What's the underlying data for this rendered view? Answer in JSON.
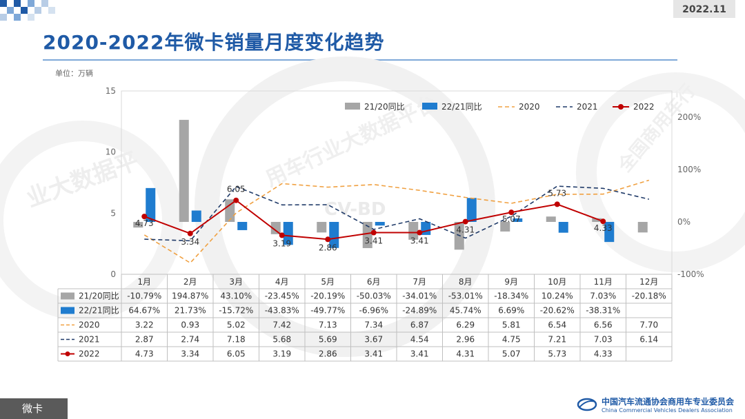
{
  "header": {
    "date": "2022.11",
    "title": "2020-2022年微卡销量月度变化趋势",
    "unit": "单位：万辆"
  },
  "footer": {
    "tag": "微卡",
    "org_cn": "中国汽车流通协会商用车专业委员会",
    "org_en": "China Commercial Vehicles Dealers Association"
  },
  "watermark": {
    "text1": "业大数据平",
    "text2": "用车行业大数据平台",
    "text3": "CV-BD",
    "text4": "全国商用车行"
  },
  "colors": {
    "bar2120": "#a6a6a6",
    "bar2221": "#1f7ccf",
    "line2020": "#f0a040",
    "line2021": "#1f3a68",
    "line2022": "#c00000",
    "title": "#1f5aa6"
  },
  "chart_data": {
    "type": "bar+line",
    "categories": [
      "1月",
      "2月",
      "3月",
      "4月",
      "5月",
      "6月",
      "7月",
      "8月",
      "9月",
      "10月",
      "11月",
      "12月"
    ],
    "left_axis": {
      "min": 0,
      "max": 15,
      "ticks": [
        "0",
        "5",
        "10",
        "15"
      ]
    },
    "right_axis": {
      "min": -100,
      "max": 250,
      "ticks": [
        "-100%",
        "0%",
        "100%",
        "200%"
      ],
      "tick_values": [
        -100,
        0,
        100,
        200
      ]
    },
    "legend_position": "top-right",
    "bar_series": [
      {
        "name": "21/20同比",
        "color": "#a6a6a6",
        "values": [
          -10.79,
          194.87,
          43.1,
          -23.45,
          -20.19,
          -50.03,
          -34.01,
          -53.01,
          -18.34,
          10.24,
          7.03,
          -20.18
        ],
        "labels": [
          "-10.79%",
          "194.87%",
          "43.10%",
          "-23.45%",
          "-20.19%",
          "-50.03%",
          "-34.01%",
          "-53.01%",
          "-18.34%",
          "10.24%",
          "7.03%",
          "-20.18%"
        ]
      },
      {
        "name": "22/21同比",
        "color": "#1f7ccf",
        "values": [
          64.67,
          21.73,
          -15.72,
          -43.83,
          -49.77,
          -6.96,
          -24.89,
          45.74,
          6.69,
          -20.62,
          -38.31,
          null
        ],
        "labels": [
          "64.67%",
          "21.73%",
          "-15.72%",
          "-43.83%",
          "-49.77%",
          "-6.96%",
          "-24.89%",
          "45.74%",
          "6.69%",
          "-20.62%",
          "-38.31%",
          ""
        ]
      }
    ],
    "line_series": [
      {
        "name": "2020",
        "color": "#f0a040",
        "style": "dashed",
        "values": [
          3.22,
          0.93,
          5.02,
          7.42,
          7.13,
          7.34,
          6.87,
          6.29,
          5.81,
          6.54,
          6.56,
          7.7
        ],
        "labels": [
          "3.22",
          "0.93",
          "5.02",
          "7.42",
          "7.13",
          "7.34",
          "6.87",
          "6.29",
          "5.81",
          "6.54",
          "6.56",
          "7.70"
        ]
      },
      {
        "name": "2021",
        "color": "#1f3a68",
        "style": "dashed",
        "values": [
          2.87,
          2.74,
          7.18,
          5.68,
          5.69,
          3.67,
          4.54,
          2.96,
          4.75,
          7.21,
          7.03,
          6.14
        ],
        "labels": [
          "2.87",
          "2.74",
          "7.18",
          "5.68",
          "5.69",
          "3.67",
          "4.54",
          "2.96",
          "4.75",
          "7.21",
          "7.03",
          "6.14"
        ]
      },
      {
        "name": "2022",
        "color": "#c00000",
        "style": "solid-marker",
        "values": [
          4.73,
          3.34,
          6.05,
          3.19,
          2.86,
          3.41,
          3.41,
          4.31,
          5.07,
          5.73,
          4.33,
          null
        ],
        "labels": [
          "4.73",
          "3.34",
          "6.05",
          "3.19",
          "2.86",
          "3.41",
          "3.41",
          "4.31",
          "5.07",
          "5.73",
          "4.33",
          ""
        ]
      }
    ],
    "point_labels_2022": [
      "4.73",
      "3.34",
      "6.05",
      "3.19",
      "2.86",
      "3.41",
      "3.41",
      "4.31",
      "5.07",
      "5.73",
      "4.33"
    ]
  }
}
